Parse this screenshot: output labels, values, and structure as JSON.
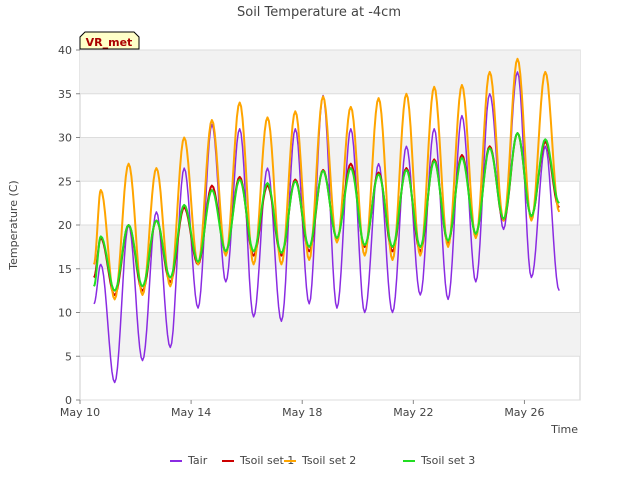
{
  "chart_data": {
    "type": "line",
    "title": "Soil Temperature at -4cm",
    "xlabel": "Time",
    "ylabel": "Temperature (C)",
    "xlim": [
      "2024-05-10",
      "2024-05-28"
    ],
    "ylim": [
      0,
      40
    ],
    "x_ticks": [
      "May 10",
      "May 14",
      "May 18",
      "May 22",
      "May 26"
    ],
    "y_ticks": [
      "0",
      "5",
      "10",
      "15",
      "20",
      "25",
      "30",
      "35",
      "40"
    ],
    "grid": true,
    "legend_position": "bottom",
    "annotation": "VR_met",
    "x": [
      "2024-05-10 12:00",
      "2024-05-10 18:00",
      "2024-05-11 06:00",
      "2024-05-11 18:00",
      "2024-05-12 06:00",
      "2024-05-12 18:00",
      "2024-05-13 06:00",
      "2024-05-13 18:00",
      "2024-05-14 06:00",
      "2024-05-14 18:00",
      "2024-05-15 06:00",
      "2024-05-15 18:00",
      "2024-05-16 06:00",
      "2024-05-16 18:00",
      "2024-05-17 06:00",
      "2024-05-17 18:00",
      "2024-05-18 06:00",
      "2024-05-18 18:00",
      "2024-05-19 06:00",
      "2024-05-19 18:00",
      "2024-05-20 06:00",
      "2024-05-20 18:00",
      "2024-05-21 06:00",
      "2024-05-21 18:00",
      "2024-05-22 06:00",
      "2024-05-22 18:00",
      "2024-05-23 06:00",
      "2024-05-23 18:00",
      "2024-05-24 06:00",
      "2024-05-24 18:00",
      "2024-05-25 06:00",
      "2024-05-25 18:00",
      "2024-05-26 06:00",
      "2024-05-26 18:00",
      "2024-05-27 06:00",
      "2024-05-27 18:00",
      "2024-05-28 06:00"
    ],
    "series": [
      {
        "name": "Tair",
        "color": "#8a2be2",
        "values": [
          11.0,
          15.5,
          2.0,
          20.0,
          4.5,
          21.5,
          6.0,
          26.5,
          10.5,
          31.5,
          13.5,
          31.0,
          9.5,
          26.5,
          9.0,
          31.0,
          11.0,
          34.8,
          10.5,
          31.0,
          10.0,
          27.0,
          10.0,
          29.0,
          12.0,
          31.0,
          11.5,
          32.5,
          13.5,
          35.0,
          19.5,
          37.5,
          14.0,
          29.0,
          12.5,
          null,
          null
        ]
      },
      {
        "name": "Tsoil set 1",
        "color": "#cc0000",
        "values": [
          14.0,
          18.5,
          12.0,
          20.0,
          12.5,
          20.5,
          13.5,
          22.0,
          15.5,
          24.5,
          17.0,
          25.5,
          16.5,
          24.5,
          16.5,
          25.2,
          17.0,
          26.3,
          18.5,
          27.0,
          17.5,
          26.0,
          17.0,
          26.5,
          17.0,
          27.5,
          18.0,
          28.0,
          19.0,
          29.0,
          20.5,
          30.5,
          21.0,
          29.5,
          22.0,
          null,
          null
        ]
      },
      {
        "name": "Tsoil set 2",
        "color": "#ffa500",
        "values": [
          15.5,
          24.0,
          11.5,
          27.0,
          12.0,
          26.5,
          13.0,
          30.0,
          15.5,
          32.0,
          16.5,
          34.0,
          15.5,
          32.3,
          15.5,
          33.0,
          16.0,
          34.7,
          18.0,
          33.5,
          16.5,
          34.5,
          16.0,
          35.0,
          16.5,
          35.8,
          17.5,
          36.0,
          18.5,
          37.5,
          20.5,
          39.0,
          20.5,
          37.5,
          21.5,
          null,
          null
        ]
      },
      {
        "name": "Tsoil set 3",
        "color": "#22dd22",
        "values": [
          13.0,
          18.7,
          12.5,
          20.0,
          13.0,
          20.5,
          14.0,
          22.3,
          15.8,
          24.0,
          17.0,
          25.2,
          17.0,
          24.8,
          16.8,
          25.0,
          17.5,
          26.2,
          18.5,
          26.5,
          17.7,
          25.8,
          17.5,
          26.3,
          17.5,
          27.3,
          18.2,
          27.7,
          19.0,
          28.8,
          20.7,
          30.5,
          21.0,
          29.8,
          22.5,
          null,
          null
        ]
      }
    ]
  }
}
